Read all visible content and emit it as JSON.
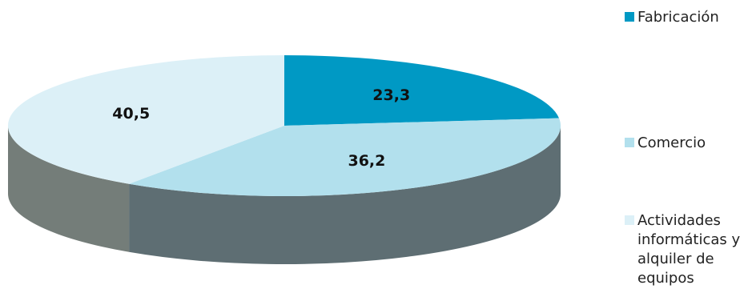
{
  "chart_data": {
    "type": "pie",
    "style": "3d-tilted",
    "slices": [
      {
        "label": "Fabricación",
        "value": 23.3,
        "value_label": "23,3",
        "color": "#0099c4",
        "side_color": "#5e6e73"
      },
      {
        "label": "Comercio",
        "value": 36.2,
        "value_label": "36,2",
        "color": "#b2e0ed",
        "side_color": "#5e6e73"
      },
      {
        "label": "Actividades informáticas y alquiler de equipos",
        "value": 40.5,
        "value_label": "40,5",
        "color": "#dcf0f7",
        "side_color": "#747d79"
      }
    ],
    "legend_position": "right"
  }
}
